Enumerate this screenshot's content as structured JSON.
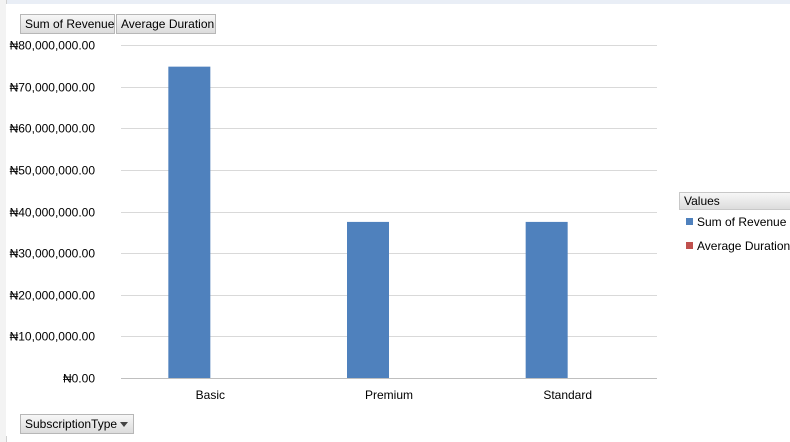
{
  "pivot": {
    "value_fields": [
      "Sum of Revenue",
      "Average Duration"
    ],
    "axis_field": "SubscriptionType"
  },
  "legend": {
    "title": "Values",
    "items": [
      {
        "label": "Sum of Revenue",
        "color": "#4f81bd"
      },
      {
        "label": "Average Duration",
        "color": "#c0504d"
      }
    ]
  },
  "chart_data": {
    "type": "bar",
    "title": "",
    "xlabel": "",
    "ylabel": "",
    "categories": [
      "Basic",
      "Premium",
      "Standard"
    ],
    "series": [
      {
        "name": "Sum of Revenue",
        "color": "#4f81bd",
        "values": [
          74800000,
          37500000,
          37500000
        ]
      },
      {
        "name": "Average Duration",
        "color": "#c0504d",
        "values": [
          0,
          0,
          0
        ]
      }
    ],
    "ylim": [
      0,
      80000000
    ],
    "ytick_values": [
      0,
      10000000,
      20000000,
      30000000,
      40000000,
      50000000,
      60000000,
      70000000,
      80000000
    ],
    "ytick_labels": [
      "₦0.00",
      "₦10,000,000.00",
      "₦20,000,000.00",
      "₦30,000,000.00",
      "₦40,000,000.00",
      "₦50,000,000.00",
      "₦60,000,000.00",
      "₦70,000,000.00",
      "₦80,000,000.00"
    ],
    "grid": true,
    "legend_position": "right"
  }
}
